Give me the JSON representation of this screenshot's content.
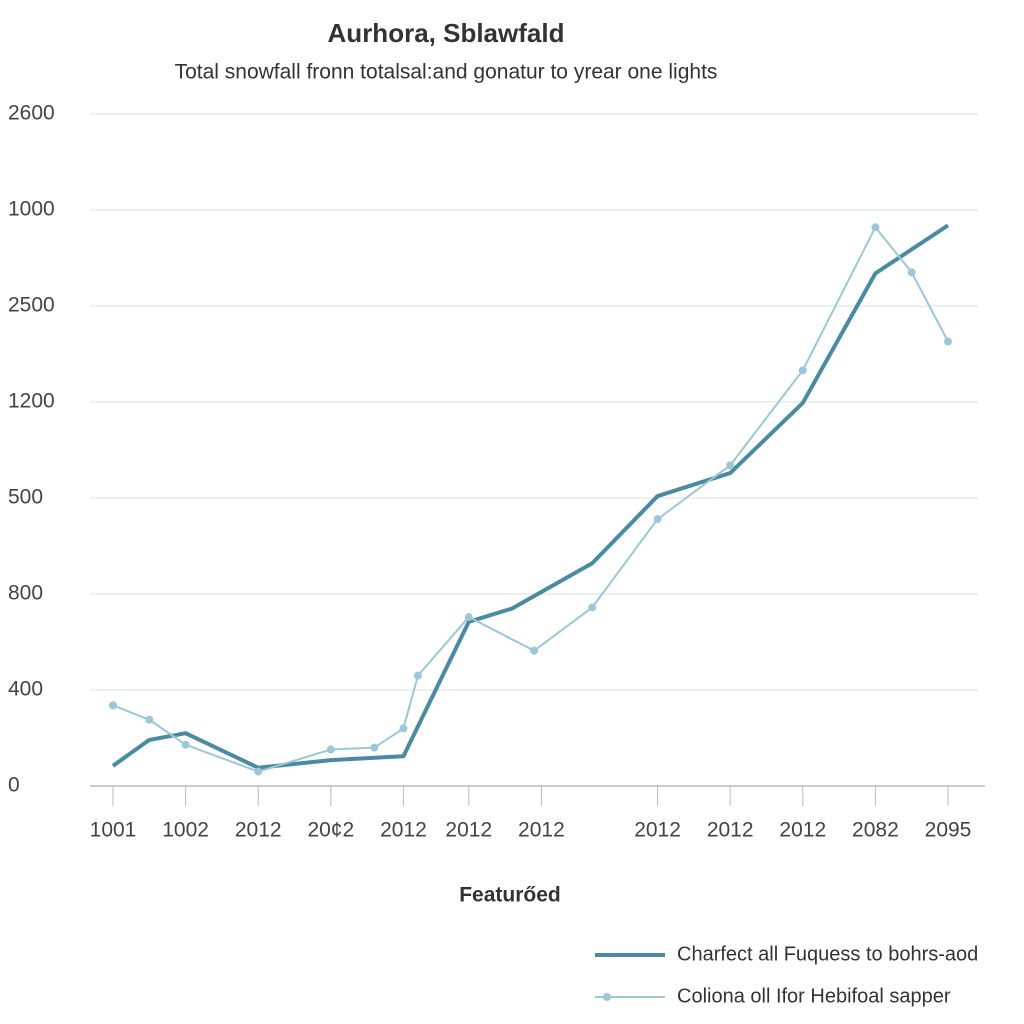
{
  "chart_data": {
    "type": "line",
    "title": "Aurhora, Sblawfald",
    "subtitle": "Total snowfall fronn totalsal:and gonatur to yrear one lights",
    "x_label": "Featurőed",
    "xlim": [
      0,
      11.5
    ],
    "xticks": [
      {
        "value": 0,
        "label": "1001"
      },
      {
        "value": 1,
        "label": "1002"
      },
      {
        "value": 2,
        "label": "2012"
      },
      {
        "value": 3,
        "label": "20¢2"
      },
      {
        "value": 4,
        "label": "2012"
      },
      {
        "value": 4.9,
        "label": "2012"
      },
      {
        "value": 5.9,
        "label": "2012"
      },
      {
        "value": 7.5,
        "label": "2012"
      },
      {
        "value": 8.5,
        "label": "2012"
      },
      {
        "value": 9.5,
        "label": "2012"
      },
      {
        "value": 10.5,
        "label": "2082"
      },
      {
        "value": 11.5,
        "label": "2095"
      }
    ],
    "ylim": [
      0,
      700
    ],
    "yticks": [
      0,
      {
        "value": 100,
        "label": "400"
      },
      {
        "value": 200,
        "label": "800"
      },
      {
        "value": 300,
        "label": "500"
      },
      {
        "value": 400,
        "label": "1200"
      },
      {
        "value": 500,
        "label": "2500"
      },
      {
        "value": 600,
        "label": "1000"
      },
      {
        "value": 700,
        "label": "2600"
      }
    ],
    "grid": true,
    "legend": "bottom-right",
    "series": [
      {
        "name": "Charfect all Fuquess to bohrs-aod",
        "color": "#4a8aa3",
        "markers": false,
        "x": [
          0,
          0.5,
          1,
          2,
          3,
          4,
          4.9,
          5.5,
          6.6,
          7.5,
          8.5,
          9.5,
          10.5,
          11.5
        ],
        "values": [
          21,
          48,
          55,
          19,
          27,
          31,
          171,
          185,
          232,
          302,
          326,
          399,
          534,
          584
        ]
      },
      {
        "name": "Coliona oll Ifor Hebifoal sapper",
        "color": "#9cc7d8",
        "markers": true,
        "x": [
          0,
          0.5,
          1,
          2,
          3,
          3.6,
          4,
          4.2,
          4.9,
          5.8,
          6.6,
          7.5,
          8.5,
          9.5,
          10.5,
          11,
          11.5
        ],
        "values": [
          84,
          69,
          43,
          15,
          38,
          40,
          60,
          115,
          176,
          141,
          186,
          278,
          334,
          433,
          582,
          535,
          463
        ]
      }
    ]
  }
}
